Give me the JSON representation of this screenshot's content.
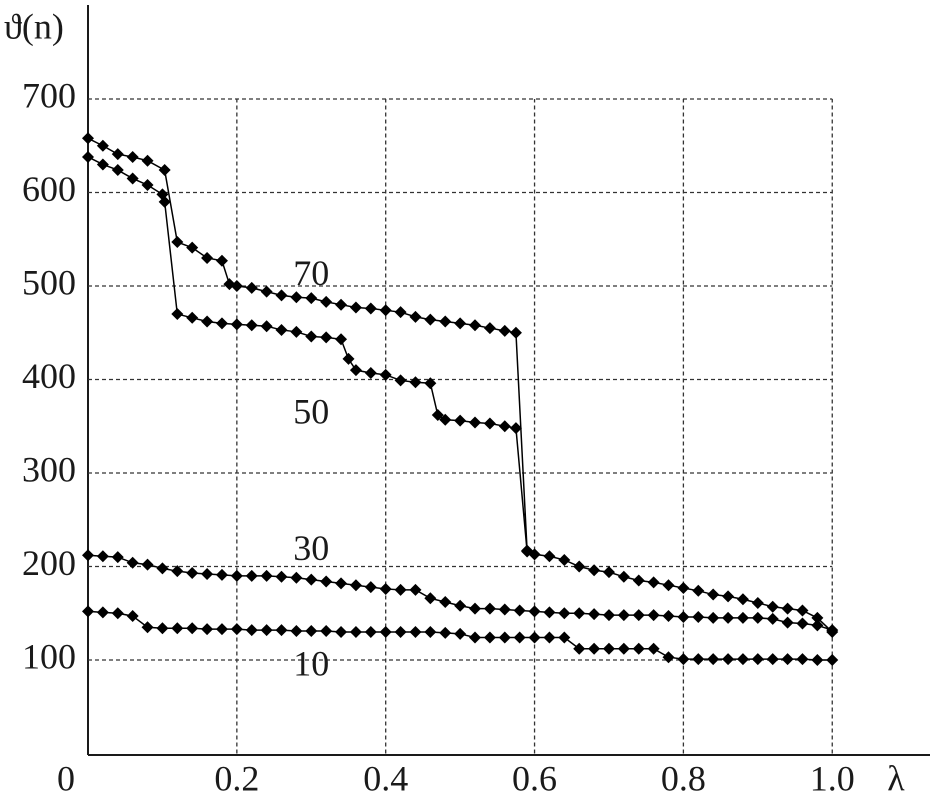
{
  "chart_data": {
    "type": "line",
    "x_label": "λ",
    "y_label": "ϑ(n)",
    "xlim": [
      0,
      1.13
    ],
    "ylim": [
      0,
      800
    ],
    "xticks": [
      0,
      0.2,
      0.4,
      0.6,
      0.8,
      {
        "value": 1,
        "label": "1.0"
      }
    ],
    "yticks": [
      100,
      200,
      300,
      400,
      500,
      600,
      700
    ],
    "grid": true,
    "series": [
      {
        "name": "70",
        "color": "#000000",
        "x": [
          0,
          0.02,
          0.04,
          0.06,
          0.08,
          0.103,
          0.12,
          0.14,
          0.16,
          0.18,
          0.19,
          0.2,
          0.22,
          0.24,
          0.26,
          0.28,
          0.3,
          0.32,
          0.34,
          0.36,
          0.38,
          0.4,
          0.42,
          0.44,
          0.46,
          0.48,
          0.5,
          0.52,
          0.54,
          0.56,
          0.575,
          0.59,
          0.6,
          0.62,
          0.64,
          0.66,
          0.68,
          0.7,
          0.72,
          0.74,
          0.76,
          0.78,
          0.8,
          0.82,
          0.84,
          0.86,
          0.88,
          0.9,
          0.92,
          0.94,
          0.96,
          0.98,
          1.0
        ],
        "values": [
          658,
          650,
          641,
          638,
          634,
          624,
          547,
          541,
          530,
          527,
          502,
          500,
          498,
          494,
          490,
          488,
          487,
          483,
          480,
          477,
          476,
          474,
          472,
          467,
          464,
          462,
          460,
          458,
          455,
          452,
          450,
          217,
          213,
          211,
          207,
          200,
          196,
          194,
          189,
          185,
          183,
          180,
          177,
          174,
          170,
          168,
          165,
          161,
          157,
          155,
          153,
          145,
          130
        ]
      },
      {
        "name": "50",
        "color": "#000000",
        "x": [
          0,
          0.02,
          0.04,
          0.06,
          0.08,
          0.1,
          0.103,
          0.12,
          0.14,
          0.16,
          0.18,
          0.2,
          0.22,
          0.24,
          0.26,
          0.28,
          0.3,
          0.32,
          0.34,
          0.35,
          0.36,
          0.38,
          0.4,
          0.42,
          0.44,
          0.46,
          0.47,
          0.48,
          0.5,
          0.52,
          0.54,
          0.56,
          0.575,
          0.59
        ],
        "values": [
          638,
          630,
          624,
          615,
          608,
          598,
          590,
          470,
          466,
          462,
          460,
          459,
          458,
          457,
          453,
          451,
          446,
          445,
          443,
          422,
          410,
          407,
          405,
          399,
          397,
          396,
          362,
          357,
          356,
          354,
          353,
          350,
          348,
          216
        ]
      },
      {
        "name": "30",
        "color": "#000000",
        "x": [
          0,
          0.02,
          0.04,
          0.06,
          0.08,
          0.1,
          0.12,
          0.14,
          0.16,
          0.18,
          0.2,
          0.22,
          0.24,
          0.26,
          0.28,
          0.3,
          0.32,
          0.34,
          0.36,
          0.38,
          0.4,
          0.42,
          0.44,
          0.46,
          0.48,
          0.5,
          0.52,
          0.54,
          0.56,
          0.58,
          0.6,
          0.62,
          0.64,
          0.66,
          0.68,
          0.7,
          0.72,
          0.74,
          0.76,
          0.78,
          0.8,
          0.82,
          0.84,
          0.86,
          0.88,
          0.9,
          0.92,
          0.94,
          0.96,
          0.98,
          1.0
        ],
        "values": [
          212,
          211,
          210,
          204,
          202,
          198,
          195,
          193,
          192,
          191,
          190,
          190,
          190,
          189,
          188,
          186,
          184,
          182,
          180,
          178,
          176,
          175,
          175,
          166,
          162,
          158,
          155,
          155,
          154,
          153,
          152,
          151,
          150,
          150,
          149,
          148,
          148,
          148,
          148,
          147,
          146,
          146,
          145,
          145,
          145,
          145,
          144,
          140,
          139,
          137,
          132
        ]
      },
      {
        "name": "10",
        "color": "#000000",
        "x": [
          0,
          0.02,
          0.04,
          0.06,
          0.08,
          0.1,
          0.12,
          0.14,
          0.16,
          0.18,
          0.2,
          0.22,
          0.24,
          0.26,
          0.28,
          0.3,
          0.32,
          0.34,
          0.36,
          0.38,
          0.4,
          0.42,
          0.44,
          0.46,
          0.48,
          0.5,
          0.52,
          0.54,
          0.56,
          0.58,
          0.6,
          0.62,
          0.64,
          0.66,
          0.68,
          0.7,
          0.72,
          0.74,
          0.76,
          0.78,
          0.8,
          0.82,
          0.84,
          0.86,
          0.88,
          0.9,
          0.92,
          0.94,
          0.96,
          0.98,
          1.0
        ],
        "values": [
          152,
          151,
          150,
          147,
          135,
          134,
          134,
          134,
          133,
          133,
          133,
          132,
          132,
          132,
          131,
          131,
          131,
          130,
          130,
          130,
          130,
          130,
          130,
          130,
          129,
          128,
          124,
          124,
          124,
          124,
          124,
          124,
          124,
          112,
          112,
          112,
          112,
          112,
          112,
          103,
          101,
          101,
          101,
          101,
          101,
          101,
          101,
          101,
          101,
          100,
          100
        ]
      }
    ]
  }
}
